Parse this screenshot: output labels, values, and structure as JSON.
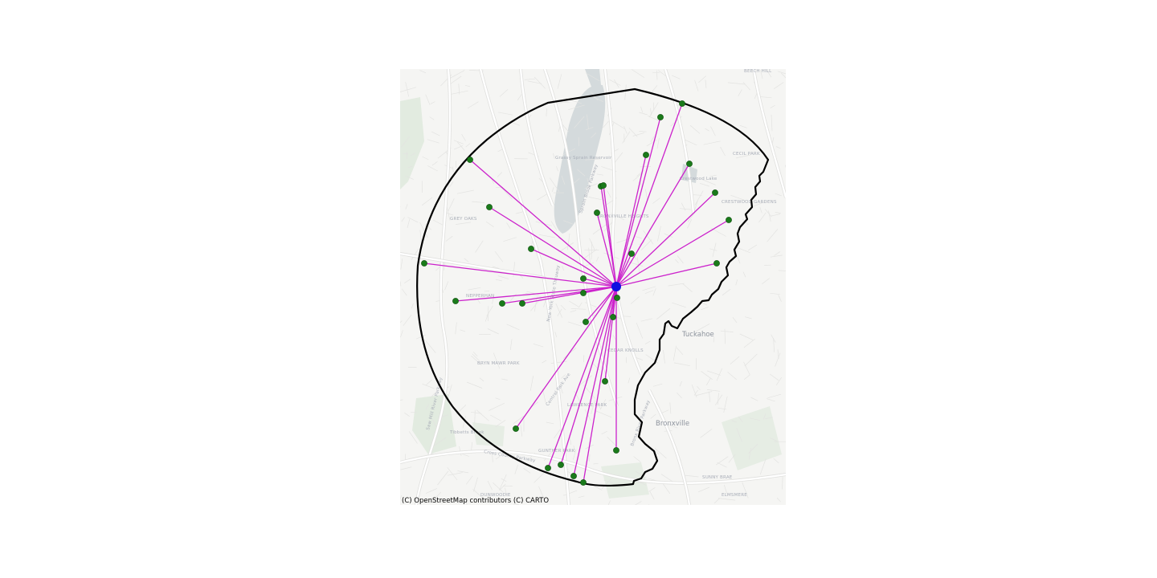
{
  "map": {
    "attribution": "(C) OpenStreetMap contributors (C) CARTO",
    "colors": {
      "background": "#f5f5f3",
      "water": "#d4dadc",
      "park": "#dfe8dc",
      "road": "#ffffff",
      "boundary": "#000000",
      "connector": "#cc22cc",
      "point": "#1a7a1a",
      "hub": "#1010e0"
    },
    "labels": {
      "place_names": [
        "GREY OAKS",
        "NEPPERHAN",
        "BRYN MAWR PARK",
        "GUNTHER PARK",
        "DUNWOODIE",
        "CECIL PARK",
        "CRESTWOOD GARDENS",
        "BRONXVILLE HEIGHTS",
        "CEDAR KNOLLS",
        "SUNNY BRAE",
        "ELMSMERE",
        "BEECH HILL",
        "LAWRENCE PARK"
      ],
      "towns": [
        "Tuckahoe",
        "Bronxville"
      ],
      "water_names": [
        "Grassy Sprain Reservoir",
        "Crestwood Lake"
      ],
      "park_names": [
        "Tibbetts Brook"
      ],
      "road_names": [
        "Sprain Brook Parkway",
        "New York State Thruway",
        "Cross County Parkway",
        "Saw Mill River Parkway",
        "Central Park Ave",
        "Bronx River Parkway"
      ]
    }
  }
}
